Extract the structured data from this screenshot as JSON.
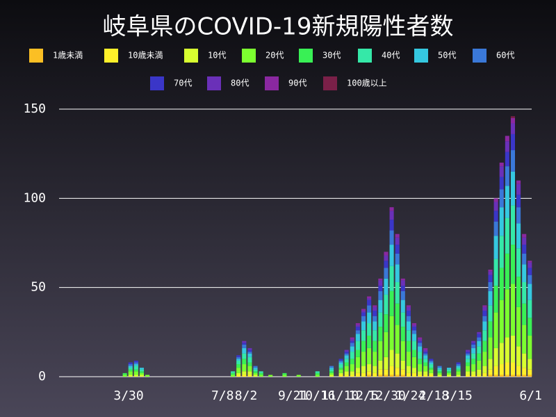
{
  "chart_data": {
    "type": "stacked_bar",
    "title": "岐阜県のCOVID-19新規陽性者数",
    "x": [
      85,
      91,
      97,
      103,
      109,
      150,
      200,
      206,
      212,
      218,
      224,
      230,
      240,
      255,
      270,
      290,
      305,
      315,
      321,
      327,
      333,
      339,
      345,
      351,
      357,
      363,
      369,
      375,
      381,
      387,
      393,
      399,
      405,
      411,
      420,
      430,
      440,
      450,
      456,
      462,
      468,
      474,
      480,
      486,
      492,
      498,
      504,
      510,
      516
    ],
    "xlim": [
      15,
      518
    ],
    "xticks": [
      {
        "value": 89,
        "label": "3/30"
      },
      {
        "value": 189,
        "label": "7/8"
      },
      {
        "value": 214,
        "label": "8/2"
      },
      {
        "value": 264,
        "label": "9/21"
      },
      {
        "value": 289,
        "label": "10/16"
      },
      {
        "value": 314,
        "label": "11/10"
      },
      {
        "value": 339,
        "label": "12/5"
      },
      {
        "value": 364,
        "label": "12/30"
      },
      {
        "value": 389,
        "label": "1/24"
      },
      {
        "value": 414,
        "label": "2/18"
      },
      {
        "value": 439,
        "label": "3/15"
      },
      {
        "value": 517,
        "label": "6/1"
      }
    ],
    "ylim": [
      0,
      150
    ],
    "yticks": [
      0,
      50,
      100,
      150
    ],
    "grid": true,
    "series": [
      {
        "name": "1歳未満",
        "color": "#fbbf24",
        "values": [
          0,
          0,
          0,
          0,
          0,
          0,
          0,
          0,
          0,
          0,
          0,
          0,
          0,
          0,
          0,
          0,
          0,
          0,
          0,
          0,
          0,
          0,
          1,
          0,
          1,
          1,
          1,
          1,
          1,
          0,
          0,
          0,
          0,
          0,
          0,
          0,
          0,
          0,
          0,
          0,
          0,
          1,
          1,
          1,
          1,
          1,
          1,
          1,
          1
        ]
      },
      {
        "name": "10歳未満",
        "color": "#fff02a",
        "values": [
          0,
          0,
          0,
          0,
          0,
          0,
          0,
          1,
          1,
          1,
          0,
          0,
          0,
          0,
          0,
          0,
          0,
          1,
          1,
          1,
          2,
          2,
          2,
          2,
          3,
          3,
          5,
          4,
          3,
          2,
          2,
          1,
          1,
          1,
          0,
          0,
          0,
          1,
          1,
          1,
          2,
          3,
          5,
          6,
          7,
          7,
          5,
          4,
          3
        ]
      },
      {
        "name": "10代",
        "color": "#d8ff30",
        "values": [
          0,
          1,
          1,
          1,
          0,
          0,
          0,
          1,
          2,
          2,
          1,
          0,
          0,
          0,
          0,
          0,
          1,
          1,
          2,
          2,
          3,
          4,
          4,
          4,
          5,
          7,
          9,
          8,
          5,
          4,
          3,
          2,
          2,
          1,
          1,
          1,
          1,
          2,
          2,
          3,
          4,
          6,
          10,
          12,
          14,
          15,
          11,
          8,
          6
        ]
      },
      {
        "name": "20代",
        "color": "#7cff30",
        "values": [
          1,
          2,
          2,
          1,
          1,
          0,
          1,
          3,
          4,
          3,
          1,
          1,
          1,
          1,
          1,
          1,
          1,
          2,
          3,
          4,
          6,
          8,
          9,
          8,
          11,
          14,
          19,
          16,
          11,
          8,
          6,
          4,
          3,
          2,
          1,
          1,
          2,
          3,
          4,
          5,
          8,
          12,
          20,
          24,
          27,
          29,
          22,
          16,
          13
        ]
      },
      {
        "name": "30代",
        "color": "#39f055",
        "values": [
          1,
          1,
          1,
          1,
          0,
          0,
          1,
          2,
          3,
          2,
          1,
          1,
          0,
          1,
          0,
          1,
          1,
          1,
          2,
          3,
          4,
          6,
          7,
          6,
          8,
          10,
          14,
          12,
          8,
          6,
          4,
          3,
          2,
          1,
          1,
          1,
          1,
          2,
          3,
          4,
          6,
          9,
          15,
          18,
          20,
          22,
          17,
          12,
          10
        ]
      },
      {
        "name": "40代",
        "color": "#35e8a8",
        "values": [
          0,
          1,
          2,
          1,
          0,
          0,
          1,
          2,
          3,
          3,
          1,
          1,
          0,
          0,
          0,
          1,
          1,
          2,
          2,
          4,
          5,
          6,
          7,
          6,
          8,
          11,
          14,
          12,
          8,
          6,
          5,
          4,
          2,
          2,
          1,
          1,
          1,
          2,
          3,
          4,
          6,
          9,
          15,
          18,
          20,
          22,
          16,
          12,
          10
        ]
      },
      {
        "name": "50代",
        "color": "#35c8e0",
        "values": [
          0,
          1,
          1,
          1,
          0,
          0,
          0,
          1,
          3,
          2,
          1,
          0,
          0,
          0,
          0,
          0,
          1,
          1,
          2,
          3,
          4,
          5,
          6,
          5,
          7,
          9,
          12,
          10,
          7,
          5,
          4,
          3,
          2,
          1,
          1,
          1,
          1,
          2,
          3,
          3,
          5,
          8,
          13,
          16,
          18,
          19,
          14,
          10,
          9
        ]
      },
      {
        "name": "60代",
        "color": "#3a78d8",
        "values": [
          0,
          1,
          1,
          0,
          0,
          0,
          0,
          1,
          2,
          1,
          1,
          0,
          0,
          0,
          0,
          0,
          1,
          1,
          1,
          2,
          2,
          3,
          4,
          3,
          5,
          6,
          8,
          6,
          5,
          3,
          2,
          2,
          1,
          1,
          1,
          0,
          1,
          1,
          2,
          2,
          3,
          5,
          8,
          10,
          11,
          12,
          9,
          6,
          5
        ]
      },
      {
        "name": "70代",
        "color": "#3a36c8",
        "values": [
          0,
          1,
          1,
          0,
          0,
          0,
          0,
          1,
          1,
          1,
          0,
          0,
          0,
          0,
          0,
          0,
          0,
          1,
          1,
          1,
          2,
          2,
          3,
          3,
          3,
          4,
          6,
          5,
          3,
          3,
          2,
          1,
          1,
          1,
          0,
          0,
          1,
          1,
          1,
          2,
          3,
          4,
          6,
          7,
          8,
          9,
          7,
          5,
          4
        ]
      },
      {
        "name": "80代",
        "color": "#6a30b8",
        "values": [
          0,
          0,
          0,
          0,
          0,
          0,
          0,
          0,
          1,
          1,
          0,
          0,
          0,
          0,
          0,
          0,
          0,
          0,
          1,
          1,
          1,
          1,
          1,
          2,
          3,
          3,
          5,
          4,
          3,
          2,
          1,
          1,
          1,
          0,
          0,
          0,
          0,
          1,
          1,
          1,
          2,
          2,
          5,
          6,
          6,
          6,
          6,
          4,
          3
        ]
      },
      {
        "name": "90代",
        "color": "#8a28a0",
        "values": [
          0,
          0,
          0,
          0,
          0,
          0,
          0,
          0,
          0,
          0,
          0,
          0,
          0,
          0,
          0,
          0,
          0,
          0,
          0,
          1,
          1,
          1,
          1,
          1,
          1,
          2,
          2,
          2,
          1,
          1,
          1,
          1,
          1,
          0,
          0,
          0,
          0,
          0,
          0,
          0,
          1,
          1,
          2,
          2,
          3,
          3,
          2,
          2,
          1
        ]
      },
      {
        "name": "100歳以上",
        "color": "#7a2048",
        "values": [
          0,
          0,
          0,
          0,
          0,
          0,
          0,
          0,
          0,
          0,
          0,
          0,
          0,
          0,
          0,
          0,
          0,
          0,
          0,
          0,
          0,
          0,
          0,
          0,
          0,
          0,
          0,
          0,
          0,
          0,
          0,
          0,
          0,
          0,
          0,
          0,
          0,
          0,
          0,
          0,
          0,
          0,
          0,
          0,
          0,
          1,
          0,
          0,
          0
        ]
      }
    ]
  }
}
